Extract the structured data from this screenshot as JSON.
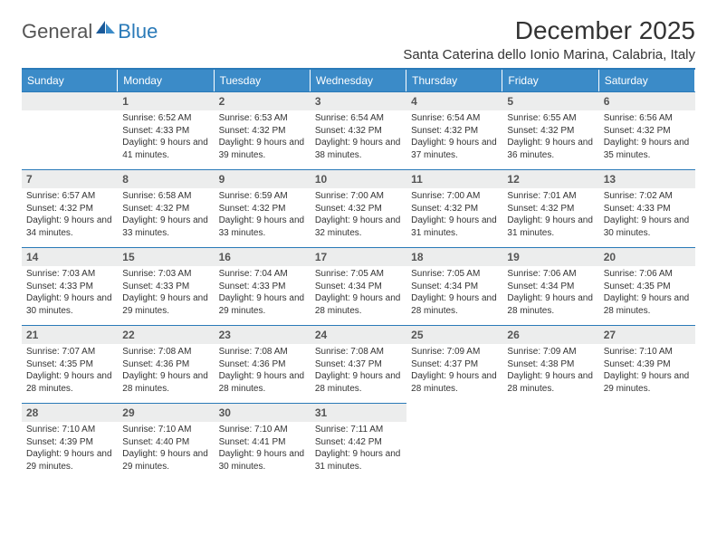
{
  "brand": {
    "general": "General",
    "blue": "Blue"
  },
  "title": "December 2025",
  "location": "Santa Caterina dello Ionio Marina, Calabria, Italy",
  "colors": {
    "header_bg": "#3b8bc8",
    "header_text": "#ffffff",
    "border": "#2a7ab8",
    "daynum_bg": "#eceded",
    "text": "#333333"
  },
  "typography": {
    "title_fontsize": 28,
    "location_fontsize": 15,
    "dayhead_fontsize": 12,
    "cell_fontsize": 10
  },
  "day_headers": [
    "Sunday",
    "Monday",
    "Tuesday",
    "Wednesday",
    "Thursday",
    "Friday",
    "Saturday"
  ],
  "leading_blanks": 1,
  "days": [
    {
      "n": "1",
      "sunrise": "6:52 AM",
      "sunset": "4:33 PM",
      "daylight": "9 hours and 41 minutes."
    },
    {
      "n": "2",
      "sunrise": "6:53 AM",
      "sunset": "4:32 PM",
      "daylight": "9 hours and 39 minutes."
    },
    {
      "n": "3",
      "sunrise": "6:54 AM",
      "sunset": "4:32 PM",
      "daylight": "9 hours and 38 minutes."
    },
    {
      "n": "4",
      "sunrise": "6:54 AM",
      "sunset": "4:32 PM",
      "daylight": "9 hours and 37 minutes."
    },
    {
      "n": "5",
      "sunrise": "6:55 AM",
      "sunset": "4:32 PM",
      "daylight": "9 hours and 36 minutes."
    },
    {
      "n": "6",
      "sunrise": "6:56 AM",
      "sunset": "4:32 PM",
      "daylight": "9 hours and 35 minutes."
    },
    {
      "n": "7",
      "sunrise": "6:57 AM",
      "sunset": "4:32 PM",
      "daylight": "9 hours and 34 minutes."
    },
    {
      "n": "8",
      "sunrise": "6:58 AM",
      "sunset": "4:32 PM",
      "daylight": "9 hours and 33 minutes."
    },
    {
      "n": "9",
      "sunrise": "6:59 AM",
      "sunset": "4:32 PM",
      "daylight": "9 hours and 33 minutes."
    },
    {
      "n": "10",
      "sunrise": "7:00 AM",
      "sunset": "4:32 PM",
      "daylight": "9 hours and 32 minutes."
    },
    {
      "n": "11",
      "sunrise": "7:00 AM",
      "sunset": "4:32 PM",
      "daylight": "9 hours and 31 minutes."
    },
    {
      "n": "12",
      "sunrise": "7:01 AM",
      "sunset": "4:32 PM",
      "daylight": "9 hours and 31 minutes."
    },
    {
      "n": "13",
      "sunrise": "7:02 AM",
      "sunset": "4:33 PM",
      "daylight": "9 hours and 30 minutes."
    },
    {
      "n": "14",
      "sunrise": "7:03 AM",
      "sunset": "4:33 PM",
      "daylight": "9 hours and 30 minutes."
    },
    {
      "n": "15",
      "sunrise": "7:03 AM",
      "sunset": "4:33 PM",
      "daylight": "9 hours and 29 minutes."
    },
    {
      "n": "16",
      "sunrise": "7:04 AM",
      "sunset": "4:33 PM",
      "daylight": "9 hours and 29 minutes."
    },
    {
      "n": "17",
      "sunrise": "7:05 AM",
      "sunset": "4:34 PM",
      "daylight": "9 hours and 28 minutes."
    },
    {
      "n": "18",
      "sunrise": "7:05 AM",
      "sunset": "4:34 PM",
      "daylight": "9 hours and 28 minutes."
    },
    {
      "n": "19",
      "sunrise": "7:06 AM",
      "sunset": "4:34 PM",
      "daylight": "9 hours and 28 minutes."
    },
    {
      "n": "20",
      "sunrise": "7:06 AM",
      "sunset": "4:35 PM",
      "daylight": "9 hours and 28 minutes."
    },
    {
      "n": "21",
      "sunrise": "7:07 AM",
      "sunset": "4:35 PM",
      "daylight": "9 hours and 28 minutes."
    },
    {
      "n": "22",
      "sunrise": "7:08 AM",
      "sunset": "4:36 PM",
      "daylight": "9 hours and 28 minutes."
    },
    {
      "n": "23",
      "sunrise": "7:08 AM",
      "sunset": "4:36 PM",
      "daylight": "9 hours and 28 minutes."
    },
    {
      "n": "24",
      "sunrise": "7:08 AM",
      "sunset": "4:37 PM",
      "daylight": "9 hours and 28 minutes."
    },
    {
      "n": "25",
      "sunrise": "7:09 AM",
      "sunset": "4:37 PM",
      "daylight": "9 hours and 28 minutes."
    },
    {
      "n": "26",
      "sunrise": "7:09 AM",
      "sunset": "4:38 PM",
      "daylight": "9 hours and 28 minutes."
    },
    {
      "n": "27",
      "sunrise": "7:10 AM",
      "sunset": "4:39 PM",
      "daylight": "9 hours and 29 minutes."
    },
    {
      "n": "28",
      "sunrise": "7:10 AM",
      "sunset": "4:39 PM",
      "daylight": "9 hours and 29 minutes."
    },
    {
      "n": "29",
      "sunrise": "7:10 AM",
      "sunset": "4:40 PM",
      "daylight": "9 hours and 29 minutes."
    },
    {
      "n": "30",
      "sunrise": "7:10 AM",
      "sunset": "4:41 PM",
      "daylight": "9 hours and 30 minutes."
    },
    {
      "n": "31",
      "sunrise": "7:11 AM",
      "sunset": "4:42 PM",
      "daylight": "9 hours and 31 minutes."
    }
  ],
  "labels": {
    "sunrise": "Sunrise: ",
    "sunset": "Sunset: ",
    "daylight": "Daylight: "
  }
}
